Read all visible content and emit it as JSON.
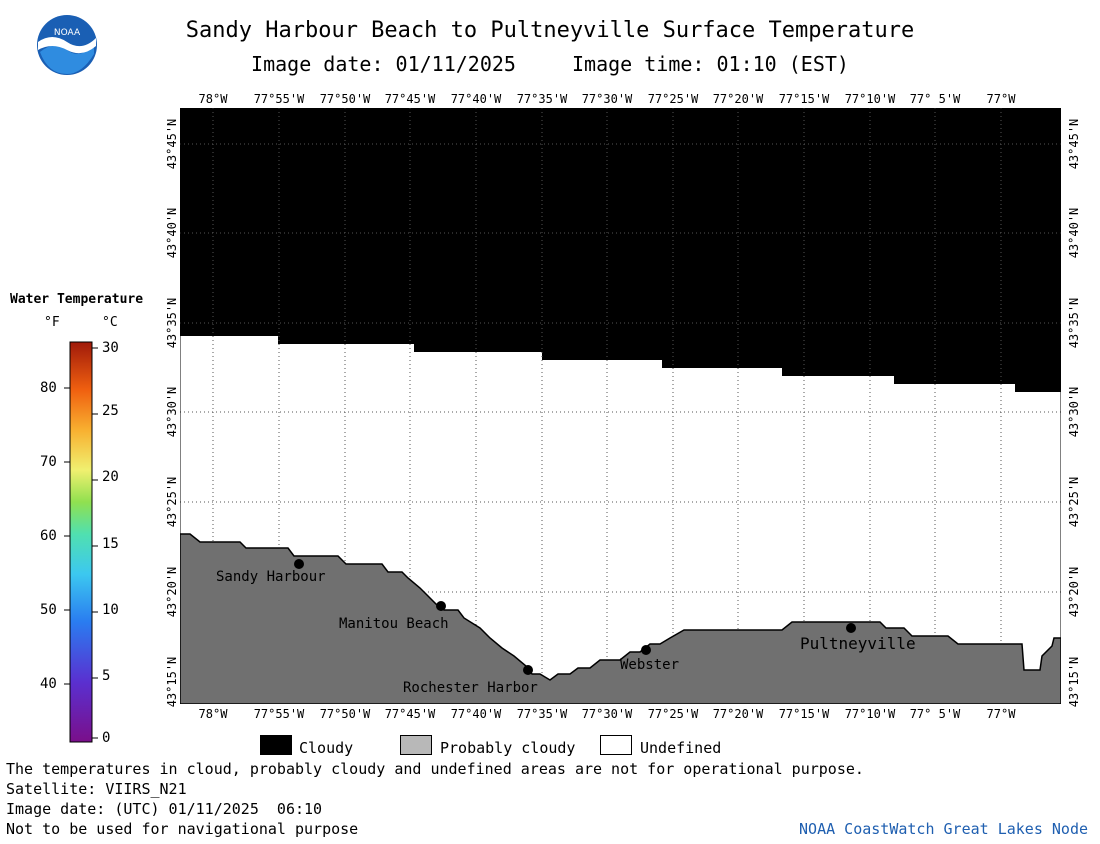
{
  "header": {
    "title": "Sandy Harbour Beach to Pultneyville Surface Temperature",
    "image_date": "Image date: 01/11/2025",
    "image_time": "Image time: 01:10 (EST)"
  },
  "logo": {
    "text": "NOAA"
  },
  "map": {
    "lon_labels_top": [
      "78°W",
      "77°55'W",
      "77°50'W",
      "77°45'W",
      "77°40'W",
      "77°35'W",
      "77°30'W",
      "77°25'W",
      "77°20'W",
      "77°15'W",
      "77°10'W",
      "77° 5'W",
      "77°W"
    ],
    "lon_labels_bottom": [
      "78°W",
      "77°55'W",
      "77°50'W",
      "77°45'W",
      "77°40'W",
      "77°35'W",
      "77°30'W",
      "77°25'W",
      "77°20'W",
      "77°15'W",
      "77°10'W",
      "77° 5'W",
      "77°W"
    ],
    "lat_labels": [
      "43°45'N",
      "43°40'N",
      "43°35'N",
      "43°30'N",
      "43°25'N",
      "43°20'N",
      "43°15'N"
    ],
    "places": [
      {
        "name": "Sandy Harbour"
      },
      {
        "name": "Manitou Beach"
      },
      {
        "name": "Rochester Harbor"
      },
      {
        "name": "Webster"
      },
      {
        "name": "Pultneyville"
      }
    ],
    "colors": {
      "cloudy": "#000000",
      "land": "#707070",
      "undefined": "#ffffff"
    }
  },
  "legend": {
    "title": "Water Temperature",
    "unit_f": "°F",
    "unit_c": "°C",
    "f_ticks": [
      "80",
      "70",
      "60",
      "50",
      "40"
    ],
    "c_ticks": [
      "30",
      "25",
      "20",
      "15",
      "10",
      "5",
      "0"
    ]
  },
  "key": {
    "cloudy": "Cloudy",
    "probably_cloudy": "Probably cloudy",
    "undefined": "Undefined"
  },
  "footer": {
    "disclaimer": "The temperatures in cloud, probably cloudy and undefined areas are not for operational purpose.",
    "satellite": "Satellite: VIIRS_N21",
    "utc_date": "Image date: (UTC) 01/11/2025  06:10",
    "nav_warning": "Not to be used for navigational purpose",
    "credit": "NOAA CoastWatch Great Lakes Node"
  }
}
